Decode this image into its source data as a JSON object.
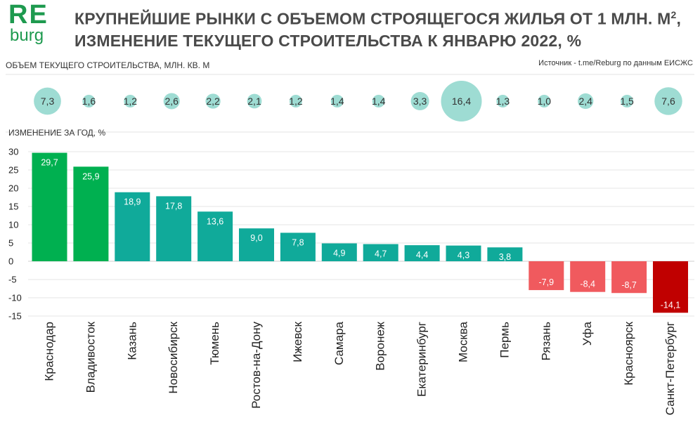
{
  "logo": {
    "re": "RE",
    "burg": "burg"
  },
  "header": {
    "title_line1_pre": "КРУПНЕЙШИЕ РЫНКИ С ОБЪЕМОМ СТРОЯЩЕГОСЯ ЖИЛЬЯ ОТ 1 МЛН. М",
    "title_sup": "2",
    "title_line1_post": ",",
    "title_line2": "ИЗМЕНЕНИЕ ТЕКУЩЕГО СТРОИТЕЛЬСТВА  К ЯНВАРЮ 2022, %",
    "volume_label": "ОБЪЕМ ТЕКУЩЕГО СТРОИТЕЛЬСТВА, МЛН. КВ. М",
    "source": "Источник - t.me/Reburg по данным ЕИСЖС"
  },
  "chart_data": {
    "type": "bar",
    "ylabel": "ИЗМЕНЕНИЕ ЗА ГОД, %",
    "ylim": [
      -15,
      30
    ],
    "yticks": [
      "30",
      "25",
      "20",
      "15",
      "10",
      "5",
      "0",
      "-5",
      "-10",
      "-15"
    ],
    "grid": true,
    "categories": [
      "Краснодар",
      "Владивосток",
      "Казань",
      "Новосибирск",
      "Тюмень",
      "Ростов-на-Дону",
      "Ижевск",
      "Самара",
      "Воронеж",
      "Екатеринбург",
      "Москва",
      "Пермь",
      "Рязань",
      "Уфа",
      "Красноярск",
      "Санкт-Петербург"
    ],
    "values": [
      29.7,
      25.9,
      18.9,
      17.8,
      13.6,
      9.0,
      7.8,
      4.9,
      4.7,
      4.4,
      4.3,
      3.8,
      -7.9,
      -8.4,
      -8.7,
      -14.1
    ],
    "value_labels": [
      "29,7",
      "25,9",
      "18,9",
      "17,8",
      "13,6",
      "9,0",
      "7,8",
      "4,9",
      "4,7",
      "4,4",
      "4,3",
      "3,8",
      "-7,9",
      "-8,4",
      "-8,7",
      "-14,1"
    ],
    "volume": [
      7.3,
      1.6,
      1.2,
      2.6,
      2.2,
      2.1,
      1.2,
      1.4,
      1.4,
      3.3,
      16.4,
      1.3,
      1.0,
      2.4,
      1.5,
      7.6
    ],
    "volume_labels": [
      "7,3",
      "1,6",
      "1,2",
      "2,6",
      "2,2",
      "2,1",
      "1,2",
      "1,4",
      "1,4",
      "3,3",
      "16,4",
      "1,3",
      "1,0",
      "2,4",
      "1,5",
      "7,6"
    ],
    "colors": {
      "high_growth": "#00b050",
      "growth": "#10aa9a",
      "decline": "#f05a5e",
      "strong_decline": "#c00000",
      "bubble": "#9edcd3"
    },
    "bar_color_keys": [
      "high_growth",
      "high_growth",
      "growth",
      "growth",
      "growth",
      "growth",
      "growth",
      "growth",
      "growth",
      "growth",
      "growth",
      "growth",
      "decline",
      "decline",
      "decline",
      "strong_decline"
    ]
  }
}
